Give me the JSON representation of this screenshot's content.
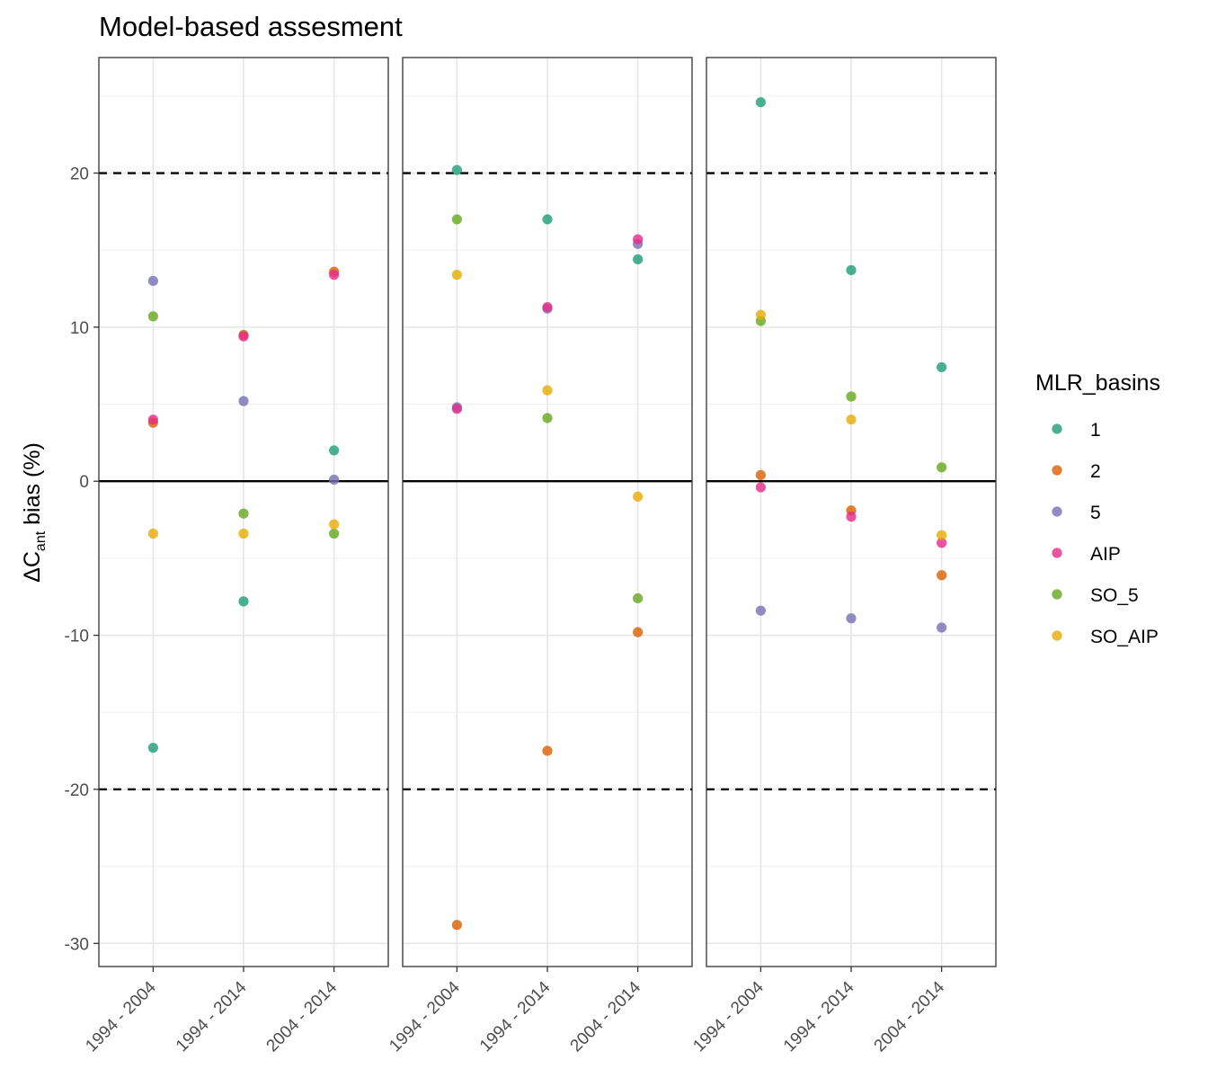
{
  "title": "Model-based assesment",
  "ylabel": {
    "prefix": "ΔC",
    "subscript": "ant",
    "suffix": " bias (%)"
  },
  "legend": {
    "title": "MLR_basins",
    "items": [
      {
        "label": "1",
        "color": "#1B9E77"
      },
      {
        "label": "2",
        "color": "#D95F02"
      },
      {
        "label": "5",
        "color": "#7570B3"
      },
      {
        "label": "AIP",
        "color": "#E7298A"
      },
      {
        "label": "SO_5",
        "color": "#66A61E"
      },
      {
        "label": "SO_AIP",
        "color": "#E6AB02"
      }
    ]
  },
  "chart_data": {
    "type": "scatter",
    "title": "Model-based assesment",
    "xlabel": "",
    "ylabel": "ΔCant bias (%)",
    "ylim": [
      -31.5,
      27.5
    ],
    "yticks": [
      -30,
      -20,
      -10,
      0,
      10,
      20
    ],
    "categories": [
      "1994 - 2004",
      "1994 - 2014",
      "2004 - 2014"
    ],
    "reference_lines": [
      {
        "y": 20,
        "style": "dashed"
      },
      {
        "y": 0,
        "style": "solid"
      },
      {
        "y": -20,
        "style": "dashed"
      }
    ],
    "grid": true,
    "legend_position": "right",
    "panels": [
      {
        "series": [
          {
            "name": "1",
            "values": [
              -17.3,
              -7.8,
              2.0
            ]
          },
          {
            "name": "2",
            "values": [
              3.8,
              9.5,
              13.6
            ]
          },
          {
            "name": "5",
            "values": [
              13.0,
              5.2,
              0.1
            ]
          },
          {
            "name": "AIP",
            "values": [
              4.0,
              9.4,
              13.4
            ]
          },
          {
            "name": "SO_5",
            "values": [
              10.7,
              -2.1,
              -3.4
            ]
          },
          {
            "name": "SO_AIP",
            "values": [
              -3.4,
              -3.4,
              -2.8
            ]
          }
        ]
      },
      {
        "series": [
          {
            "name": "1",
            "values": [
              20.2,
              17.0,
              14.4
            ]
          },
          {
            "name": "2",
            "values": [
              -28.8,
              -17.5,
              -9.8
            ]
          },
          {
            "name": "5",
            "values": [
              4.8,
              11.2,
              15.4
            ]
          },
          {
            "name": "AIP",
            "values": [
              4.7,
              11.3,
              15.7
            ]
          },
          {
            "name": "SO_5",
            "values": [
              17.0,
              4.1,
              -7.6
            ]
          },
          {
            "name": "SO_AIP",
            "values": [
              13.4,
              5.9,
              -1.0
            ]
          }
        ]
      },
      {
        "series": [
          {
            "name": "1",
            "values": [
              24.6,
              13.7,
              7.4
            ]
          },
          {
            "name": "2",
            "values": [
              0.4,
              -1.9,
              -6.1
            ]
          },
          {
            "name": "5",
            "values": [
              -8.4,
              -8.9,
              -9.5
            ]
          },
          {
            "name": "AIP",
            "values": [
              -0.4,
              -2.3,
              -4.0
            ]
          },
          {
            "name": "SO_5",
            "values": [
              10.4,
              5.5,
              0.9
            ]
          },
          {
            "name": "SO_AIP",
            "values": [
              10.8,
              4.0,
              -3.5
            ]
          }
        ]
      }
    ]
  }
}
